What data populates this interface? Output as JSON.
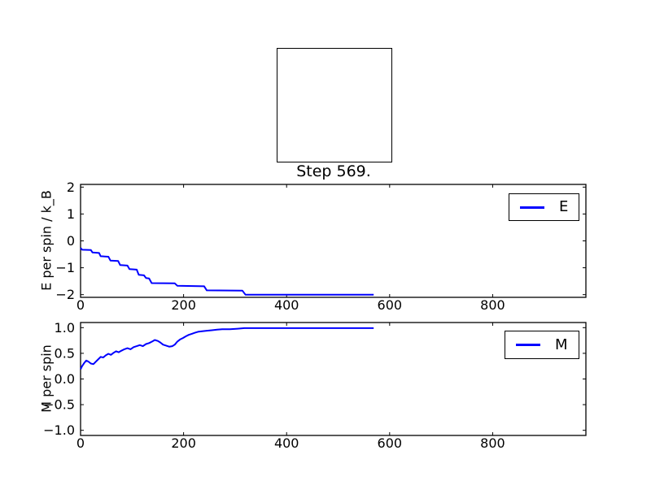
{
  "step_label": "Step 569.",
  "line_color": "#0000ff",
  "chart_data": [
    {
      "type": "line",
      "name": "energy",
      "xlabel": "",
      "ylabel": "E per spin / k_B",
      "xlim": [
        0,
        981
      ],
      "ylim": [
        -2.1,
        2.1
      ],
      "grid": false,
      "xticks": [
        0,
        200,
        400,
        600,
        800
      ],
      "yticks": [
        {
          "v": 2,
          "label": "2"
        },
        {
          "v": 1,
          "label": "1"
        },
        {
          "v": 0,
          "label": "0"
        },
        {
          "v": -1,
          "label": "−1"
        },
        {
          "v": -2,
          "label": "−2"
        }
      ],
      "legend": {
        "label": "E",
        "position": "upper right"
      },
      "color": "#0000ff",
      "series": [
        {
          "name": "E",
          "x": [
            0,
            3,
            20,
            23,
            36,
            39,
            54,
            58,
            73,
            77,
            91,
            95,
            109,
            113,
            123,
            127,
            133,
            138,
            183,
            188,
            240,
            245,
            314,
            320,
            569
          ],
          "y": [
            -0.26,
            -0.33,
            -0.34,
            -0.43,
            -0.45,
            -0.57,
            -0.59,
            -0.73,
            -0.75,
            -0.9,
            -0.92,
            -1.05,
            -1.07,
            -1.26,
            -1.28,
            -1.38,
            -1.4,
            -1.57,
            -1.58,
            -1.67,
            -1.69,
            -1.84,
            -1.85,
            -2.0,
            -2.0
          ]
        }
      ]
    },
    {
      "type": "line",
      "name": "magnetization",
      "xlabel": "",
      "ylabel": "M per spin",
      "xlim": [
        0,
        981
      ],
      "ylim": [
        -1.1,
        1.1
      ],
      "grid": false,
      "xticks": [
        0,
        200,
        400,
        600,
        800
      ],
      "yticks": [
        {
          "v": 1.0,
          "label": "1.0"
        },
        {
          "v": 0.5,
          "label": "0.5"
        },
        {
          "v": 0.0,
          "label": "0.0"
        },
        {
          "v": -0.5,
          "label": "−0.5"
        },
        {
          "v": -1.0,
          "label": "−1.0"
        }
      ],
      "legend": {
        "label": "M",
        "position": "upper right"
      },
      "color": "#0000ff",
      "series": [
        {
          "name": "M",
          "x": [
            0,
            3,
            7,
            11,
            15,
            20,
            25,
            29,
            34,
            39,
            44,
            49,
            54,
            59,
            64,
            69,
            74,
            79,
            85,
            91,
            97,
            103,
            109,
            115,
            121,
            127,
            133,
            139,
            144,
            150,
            155,
            160,
            166,
            172,
            178,
            183,
            188,
            193,
            199,
            204,
            210,
            216,
            222,
            228,
            236,
            245,
            255,
            265,
            275,
            290,
            305,
            318,
            330,
            569
          ],
          "y": [
            0.19,
            0.25,
            0.31,
            0.36,
            0.34,
            0.3,
            0.29,
            0.33,
            0.38,
            0.43,
            0.42,
            0.46,
            0.49,
            0.47,
            0.51,
            0.54,
            0.52,
            0.55,
            0.58,
            0.6,
            0.58,
            0.62,
            0.64,
            0.66,
            0.64,
            0.68,
            0.7,
            0.73,
            0.76,
            0.74,
            0.71,
            0.67,
            0.65,
            0.63,
            0.64,
            0.67,
            0.73,
            0.77,
            0.8,
            0.83,
            0.86,
            0.88,
            0.9,
            0.92,
            0.93,
            0.94,
            0.95,
            0.96,
            0.97,
            0.97,
            0.98,
            0.99,
            0.99,
            0.99
          ]
        }
      ]
    }
  ]
}
